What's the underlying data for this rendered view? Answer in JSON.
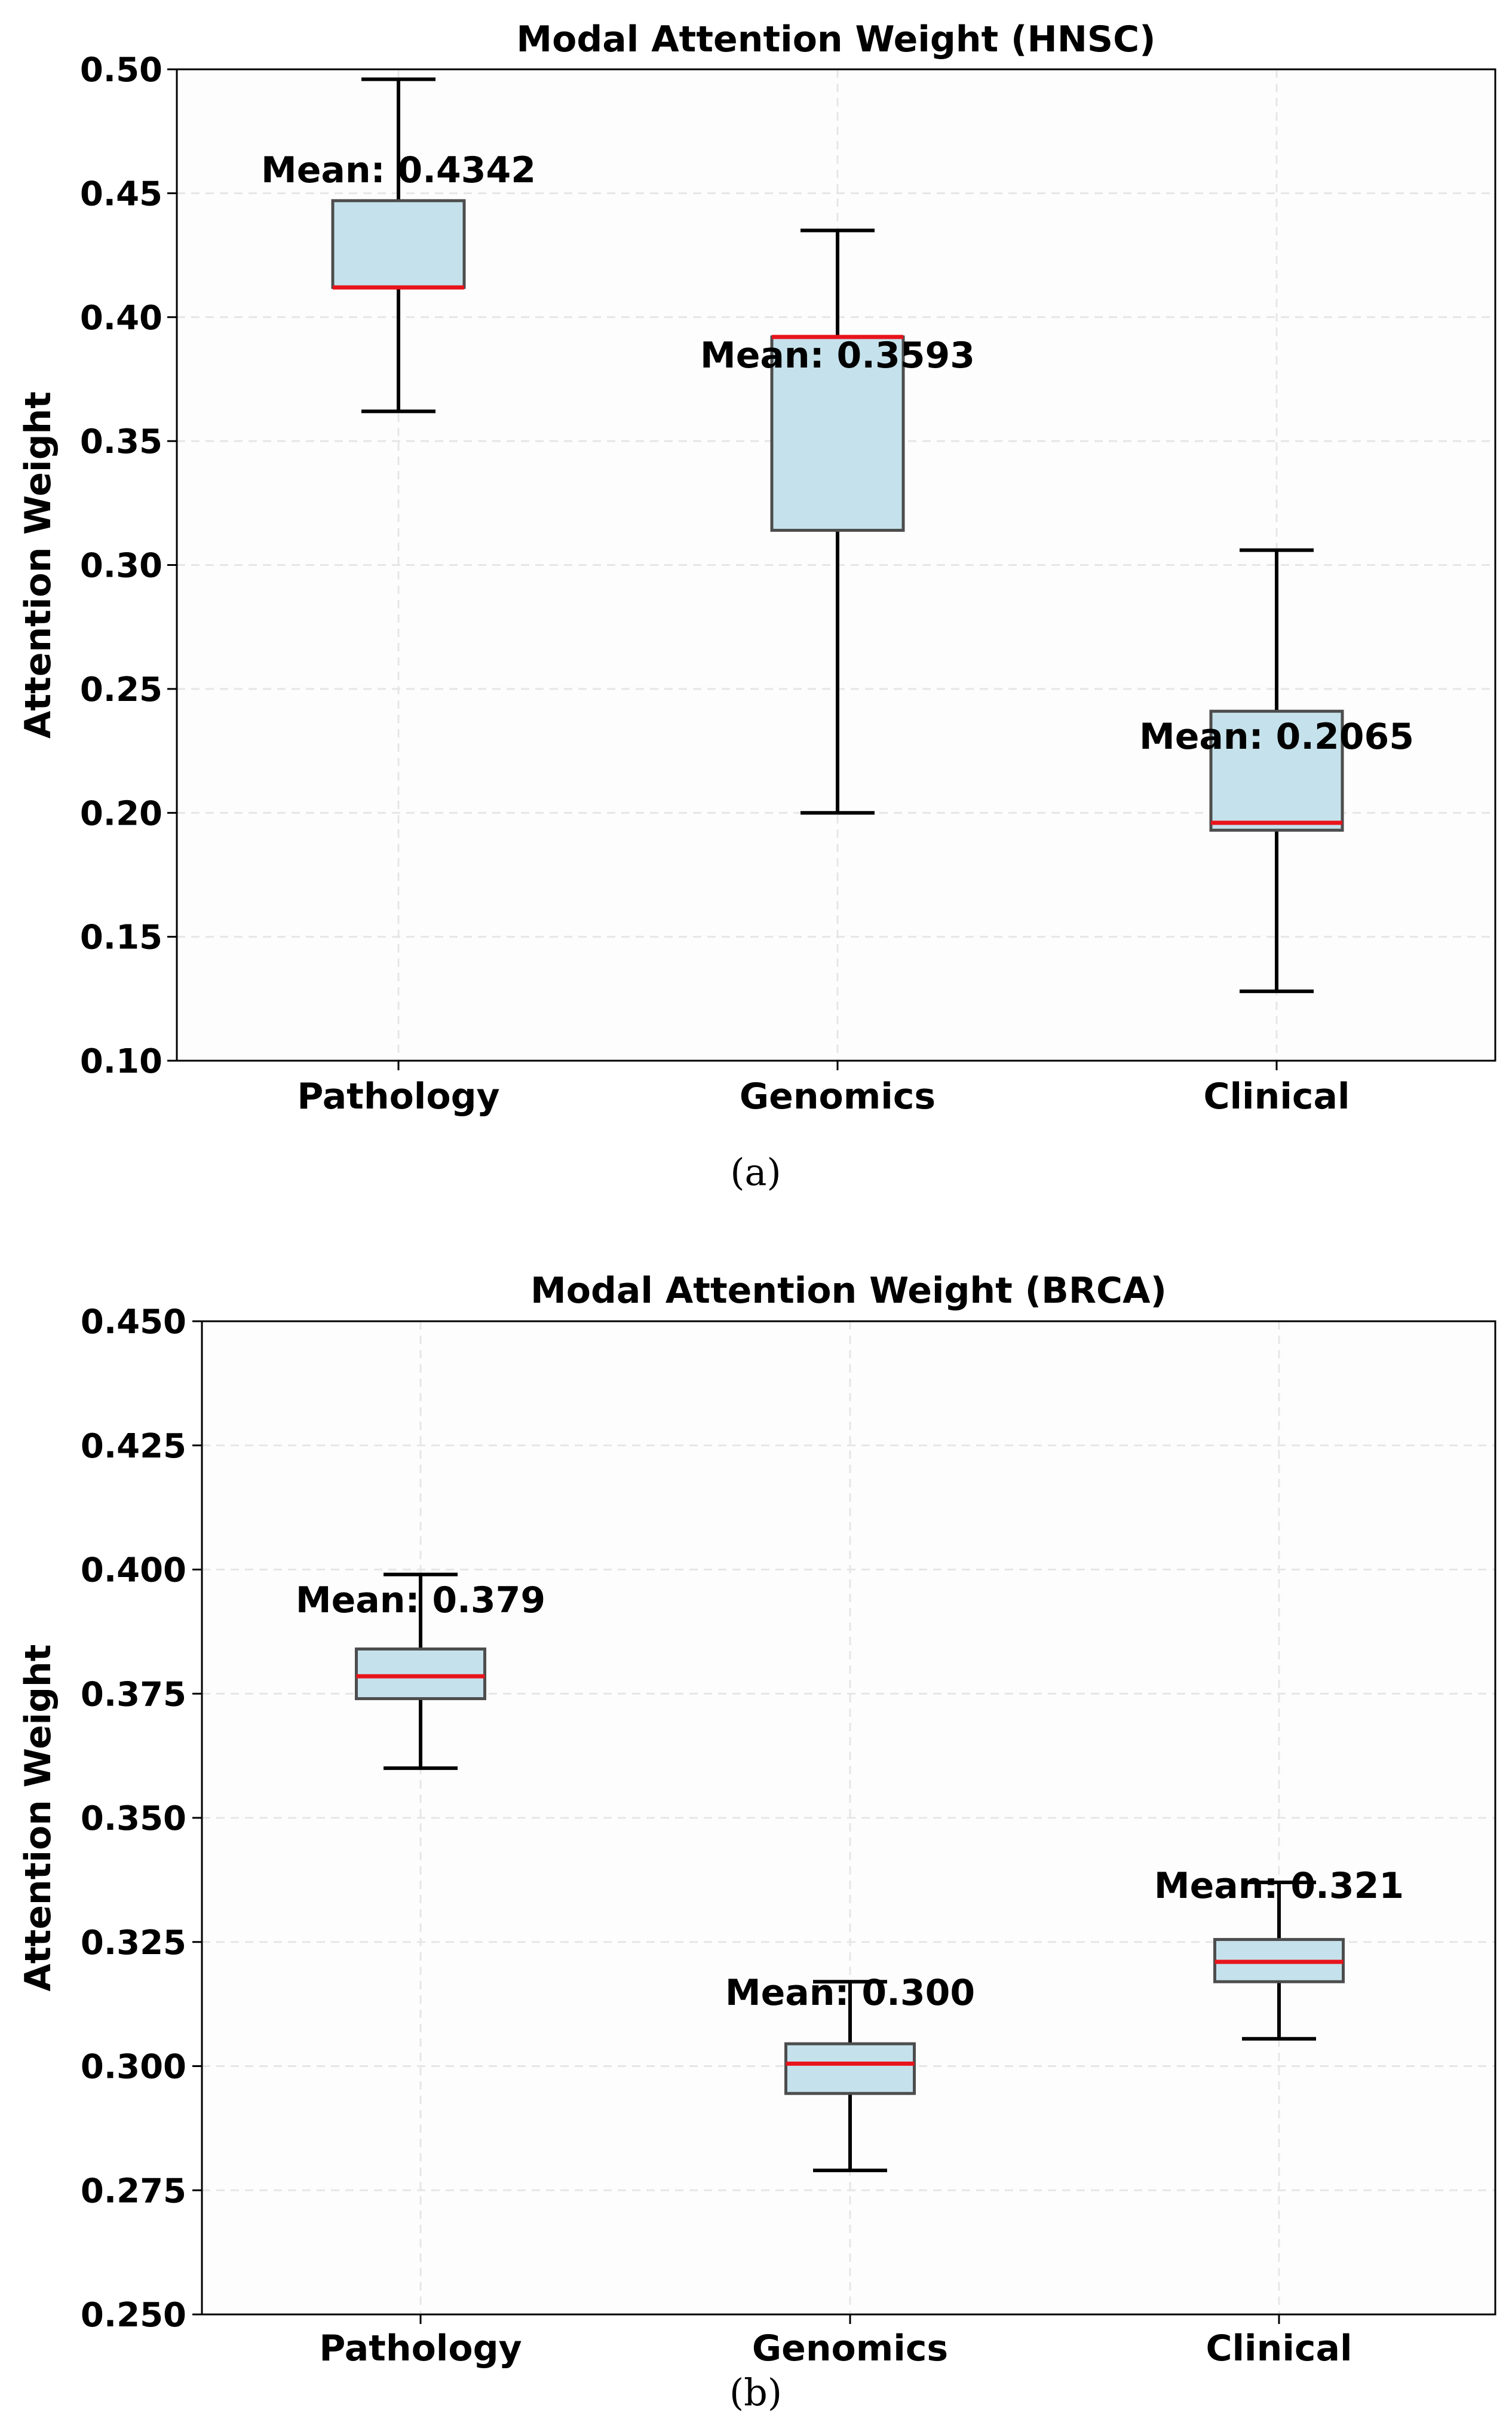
{
  "chart_data": [
    {
      "type": "box",
      "title": "Modal Attention Weight (HNSC)",
      "ylabel": "Attention Weight",
      "caption": "(a)",
      "ylim": [
        0.1,
        0.5
      ],
      "yticks": [
        "0.10",
        "0.15",
        "0.20",
        "0.25",
        "0.30",
        "0.35",
        "0.40",
        "0.45",
        "0.50"
      ],
      "grid": true,
      "categories": [
        "Pathology",
        "Genomics",
        "Clinical"
      ],
      "boxes": [
        {
          "whisker_low": 0.362,
          "q1": 0.412,
          "median": 0.412,
          "q3": 0.447,
          "whisker_high": 0.496,
          "mean_label": "Mean: 0.4342"
        },
        {
          "whisker_low": 0.2,
          "q1": 0.314,
          "median": 0.392,
          "q3": 0.392,
          "whisker_high": 0.435,
          "mean_label": "Mean: 0.3593"
        },
        {
          "whisker_low": 0.128,
          "q1": 0.193,
          "median": 0.196,
          "q3": 0.241,
          "whisker_high": 0.306,
          "mean_label": "Mean: 0.2065"
        }
      ],
      "mean_values": [
        0.4342,
        0.3593,
        0.2065
      ],
      "colors": {
        "box_fill": "#c5e2ec",
        "box_edge": "#4d4d4d",
        "median": "#e8141c",
        "whisker": "#000000"
      }
    },
    {
      "type": "box",
      "title": "Modal Attention Weight (BRCA)",
      "ylabel": "Attention Weight",
      "caption": "(b)",
      "ylim": [
        0.25,
        0.45
      ],
      "yticks": [
        "0.250",
        "0.275",
        "0.300",
        "0.325",
        "0.350",
        "0.375",
        "0.400",
        "0.425",
        "0.450"
      ],
      "grid": true,
      "categories": [
        "Pathology",
        "Genomics",
        "Clinical"
      ],
      "boxes": [
        {
          "whisker_low": 0.36,
          "q1": 0.374,
          "median": 0.3785,
          "q3": 0.384,
          "whisker_high": 0.399,
          "mean_label": "Mean: 0.379"
        },
        {
          "whisker_low": 0.279,
          "q1": 0.2945,
          "median": 0.3005,
          "q3": 0.3045,
          "whisker_high": 0.317,
          "mean_label": "Mean: 0.300"
        },
        {
          "whisker_low": 0.3055,
          "q1": 0.317,
          "median": 0.321,
          "q3": 0.3255,
          "whisker_high": 0.337,
          "mean_label": "Mean: 0.321"
        }
      ],
      "mean_values": [
        0.379,
        0.3,
        0.321
      ],
      "colors": {
        "box_fill": "#c5e2ec",
        "box_edge": "#4d4d4d",
        "median": "#e8141c",
        "whisker": "#000000"
      }
    }
  ]
}
